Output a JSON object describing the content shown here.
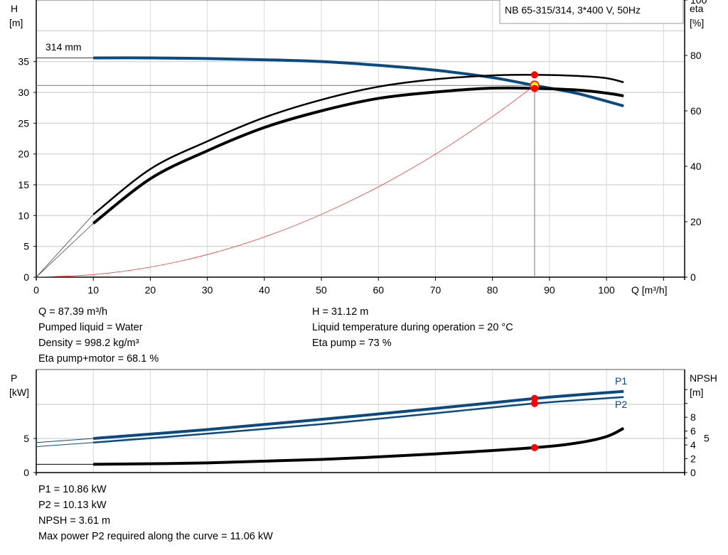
{
  "chart_data": [
    {
      "type": "line",
      "title": "NB 65-315/314, 3*400 V, 50Hz",
      "xlabel": "Q [m³/h]",
      "ylabel_left": "H\n[m]",
      "ylabel_left_lines": [
        "H",
        "[m]"
      ],
      "ylabel_right_lines": [
        "eta",
        "[%]"
      ],
      "xlim": [
        0,
        113.7
      ],
      "ylim_left": [
        0,
        45
      ],
      "ylim_right": [
        0,
        100
      ],
      "x_ticks": [
        0,
        10,
        20,
        30,
        40,
        50,
        60,
        70,
        80,
        90,
        100
      ],
      "y_ticks_left": [
        0,
        5,
        10,
        15,
        20,
        25,
        30,
        35
      ],
      "y_ticks_right": [
        0,
        20,
        40,
        60,
        80,
        100
      ],
      "grid": true,
      "impeller_label": "314 mm",
      "series": [
        {
          "id": "head",
          "axis": "left",
          "color": "#0a4a82",
          "x": [
            10,
            20,
            30,
            40,
            50,
            60,
            70,
            80,
            87.39,
            90,
            95,
            103
          ],
          "y": [
            35.6,
            35.6,
            35.5,
            35.3,
            35.0,
            34.4,
            33.6,
            32.4,
            31.12,
            30.7,
            29.8,
            27.8
          ]
        },
        {
          "id": "eta-pump",
          "axis": "right",
          "color": "#000000",
          "x": [
            10,
            20,
            30,
            40,
            50,
            60,
            70,
            80,
            87.39,
            95,
            100,
            103
          ],
          "y": [
            22.6,
            39,
            49,
            57.6,
            64,
            68.7,
            71.4,
            72.8,
            73,
            72.6,
            71.8,
            70.3
          ]
        },
        {
          "id": "eta-pump-motor",
          "axis": "right",
          "color": "#000000",
          "x": [
            10,
            20,
            30,
            40,
            50,
            60,
            70,
            80,
            87.39,
            95,
            100,
            103
          ],
          "y": [
            19.4,
            35.5,
            45.6,
            54,
            60,
            64.5,
            66.8,
            68.2,
            68.1,
            67.5,
            66.4,
            65.4
          ]
        },
        {
          "id": "system-curve",
          "axis": "left",
          "color": "#ff3030",
          "x": [
            0,
            10,
            20,
            30,
            40,
            50,
            60,
            70,
            80,
            87.39
          ],
          "y": [
            0,
            0.41,
            1.63,
            3.67,
            6.52,
            10.19,
            14.67,
            19.97,
            26.08,
            31.12
          ]
        }
      ],
      "operating_point": {
        "x": 87.39,
        "y": 31.12,
        "eta_pump": 73,
        "eta_pump_motor": 68.1
      }
    },
    {
      "type": "line",
      "ylabel_left_lines": [
        "P",
        "[kW]"
      ],
      "ylabel_right_lines": [
        "NPSH",
        "[m]"
      ],
      "xlim": [
        0,
        113.7
      ],
      "ylim_left": [
        0,
        15.1
      ],
      "ylim_right": [
        0,
        14.9
      ],
      "y_ticks_left": [
        0,
        5
      ],
      "y_ticks_right": [
        0,
        2,
        4,
        5,
        6,
        8
      ],
      "grid": true,
      "series": [
        {
          "id": "P1",
          "name": "P1",
          "axis": "left",
          "color": "#0a4a82",
          "x": [
            0,
            10,
            30,
            50,
            70,
            87.39,
            103
          ],
          "y": [
            4.4,
            5.0,
            6.3,
            7.8,
            9.4,
            10.86,
            11.9
          ]
        },
        {
          "id": "P2",
          "name": "P2",
          "axis": "left",
          "color": "#0a4a82",
          "x": [
            0,
            10,
            30,
            50,
            70,
            87.39,
            103
          ],
          "y": [
            3.8,
            4.4,
            5.7,
            7.1,
            8.7,
            10.13,
            11.06
          ]
        },
        {
          "id": "NPSH",
          "axis": "right",
          "color": "#000000",
          "x": [
            0,
            10,
            30,
            50,
            70,
            87.39,
            95,
            100,
            103
          ],
          "y": [
            1.2,
            1.2,
            1.4,
            1.9,
            2.7,
            3.61,
            4.3,
            5.2,
            6.4
          ]
        }
      ]
    }
  ],
  "top_info": {
    "left": [
      "Q = 87.39 m³/h",
      "Pumped liquid = Water",
      "Density = 998.2 kg/m³",
      "Eta pump+motor = 68.1 %"
    ],
    "right": [
      "H = 31.12 m",
      "Liquid temperature during operation = 20 °C",
      "Eta pump = 73 %"
    ]
  },
  "bottom_info": [
    "P1 = 10.86 kW",
    "P2 = 10.13 kW",
    "NPSH = 3.61 m",
    "Max power P2 required along the curve = 11.06 kW"
  ]
}
